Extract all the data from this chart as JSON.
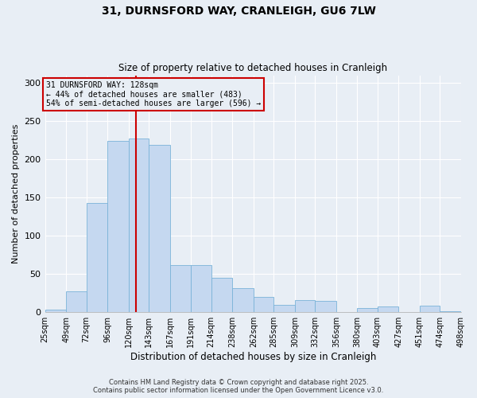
{
  "title": "31, DURNSFORD WAY, CRANLEIGH, GU6 7LW",
  "subtitle": "Size of property relative to detached houses in Cranleigh",
  "xlabel": "Distribution of detached houses by size in Cranleigh",
  "ylabel": "Number of detached properties",
  "bin_edges": [
    25,
    49,
    72,
    96,
    120,
    143,
    167,
    191,
    214,
    238,
    262,
    285,
    309,
    332,
    356,
    380,
    403,
    427,
    451,
    474,
    498
  ],
  "counts": [
    3,
    27,
    143,
    224,
    227,
    219,
    62,
    62,
    45,
    31,
    20,
    10,
    16,
    15,
    0,
    5,
    8,
    0,
    9,
    1
  ],
  "bar_color": "#c5d8f0",
  "bar_edge_color": "#7ab3d8",
  "property_size": 128,
  "property_label": "31 DURNSFORD WAY: 128sqm",
  "annotation_line1": "← 44% of detached houses are smaller (483)",
  "annotation_line2": "54% of semi-detached houses are larger (596) →",
  "vline_color": "#cc0000",
  "box_edge_color": "#cc0000",
  "ylim": [
    0,
    310
  ],
  "yticks": [
    0,
    50,
    100,
    150,
    200,
    250,
    300
  ],
  "background_color": "#e8eef5",
  "footer_line1": "Contains HM Land Registry data © Crown copyright and database right 2025.",
  "footer_line2": "Contains public sector information licensed under the Open Government Licence v3.0."
}
